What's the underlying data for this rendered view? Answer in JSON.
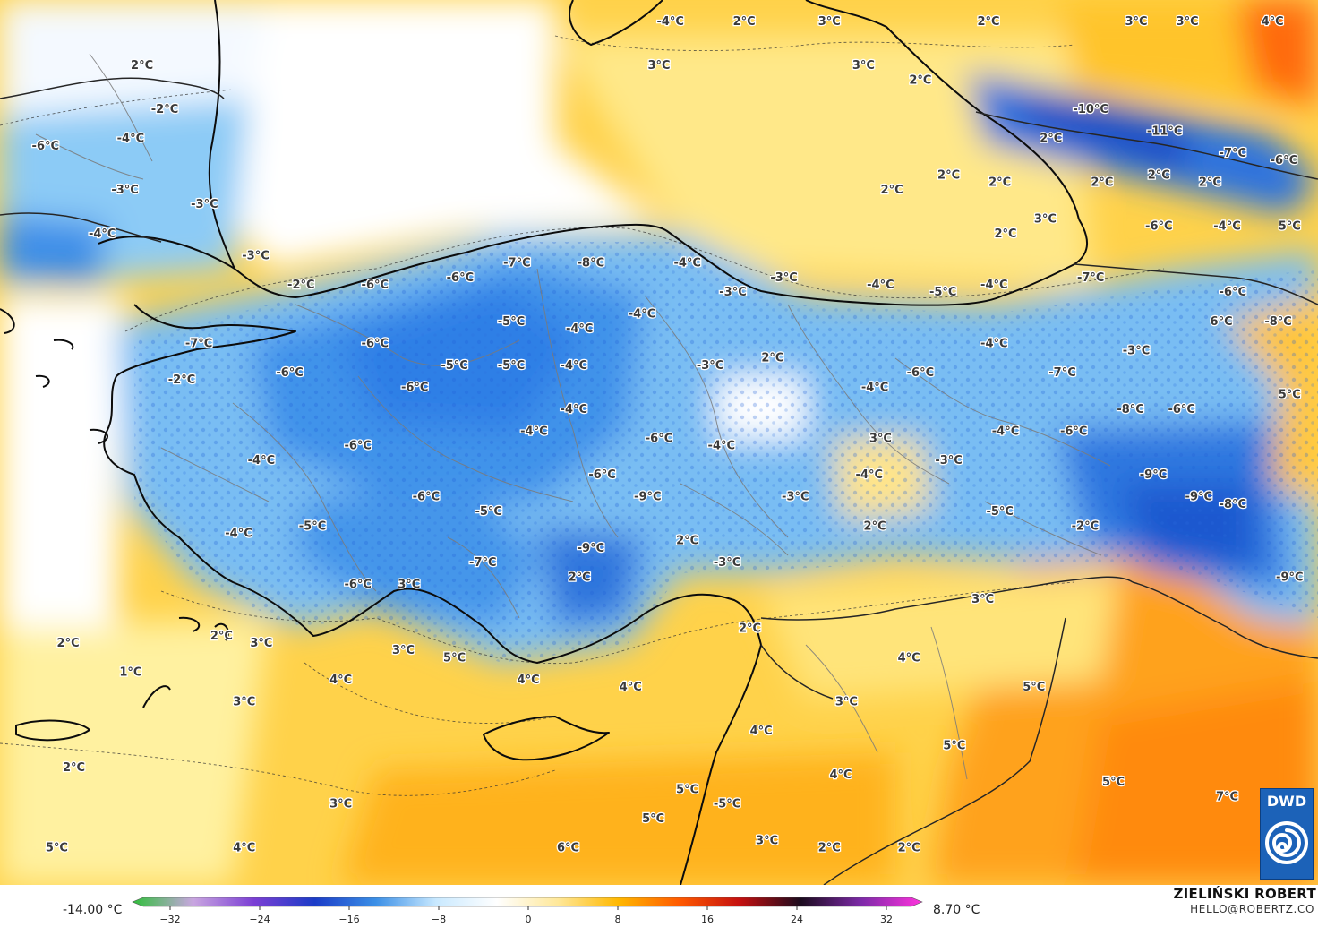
{
  "colorbar": {
    "min_label": "-14.00 °C",
    "max_label": "8.70 °C",
    "ticks": [
      "−32",
      "−24",
      "−16",
      "−8",
      "0",
      "8",
      "16",
      "24",
      "32"
    ],
    "colors": [
      "#2fbf3a",
      "#c9a6e0",
      "#7b3fd4",
      "#1b3cc7",
      "#3b8fe6",
      "#c9e9ff",
      "#ffffff",
      "#ffe89a",
      "#ffb800",
      "#ff5a00",
      "#c41010",
      "#1b0b1e",
      "#7d2aa8",
      "#ff33dd"
    ]
  },
  "credit": {
    "name": "ZIELIŃSKI ROBERT",
    "email": "HELLO@ROBERTZ.CO"
  },
  "logo": {
    "text": "DWD",
    "color": "#1c62b8"
  },
  "temperature_labels": [
    {
      "text": "2°C",
      "lon": 26.1,
      "lat": 43.9
    },
    {
      "text": "-4°C",
      "lon": 35.4,
      "lat": 44.5
    },
    {
      "text": "2°C",
      "lon": 36.7,
      "lat": 44.5
    },
    {
      "text": "3°C",
      "lon": 38.2,
      "lat": 44.5
    },
    {
      "text": "2°C",
      "lon": 41.0,
      "lat": 44.5
    },
    {
      "text": "3°C",
      "lon": 43.6,
      "lat": 44.5
    },
    {
      "text": "3°C",
      "lon": 44.5,
      "lat": 44.5
    },
    {
      "text": "4°C",
      "lon": 46.0,
      "lat": 44.5
    },
    {
      "text": "3°C",
      "lon": 35.2,
      "lat": 43.9
    },
    {
      "text": "3°C",
      "lon": 38.8,
      "lat": 43.9
    },
    {
      "text": "2°C",
      "lon": 39.8,
      "lat": 43.7
    },
    {
      "text": "-2°C",
      "lon": 26.5,
      "lat": 43.3
    },
    {
      "text": "-10°C",
      "lon": 42.8,
      "lat": 43.3
    },
    {
      "text": "-11°C",
      "lon": 44.1,
      "lat": 43.0
    },
    {
      "text": "-6°C",
      "lon": 24.4,
      "lat": 42.8
    },
    {
      "text": "-4°C",
      "lon": 25.9,
      "lat": 42.9
    },
    {
      "text": "2°C",
      "lon": 42.1,
      "lat": 42.9
    },
    {
      "text": "-7°C",
      "lon": 45.3,
      "lat": 42.7
    },
    {
      "text": "-6°C",
      "lon": 46.2,
      "lat": 42.6
    },
    {
      "text": "2°C",
      "lon": 40.3,
      "lat": 42.4
    },
    {
      "text": "2°C",
      "lon": 41.2,
      "lat": 42.3
    },
    {
      "text": "2°C",
      "lon": 43.0,
      "lat": 42.3
    },
    {
      "text": "2°C",
      "lon": 44.0,
      "lat": 42.4
    },
    {
      "text": "2°C",
      "lon": 44.9,
      "lat": 42.3
    },
    {
      "text": "-3°C",
      "lon": 25.8,
      "lat": 42.2
    },
    {
      "text": "-3°C",
      "lon": 27.2,
      "lat": 42.0
    },
    {
      "text": "2°C",
      "lon": 39.3,
      "lat": 42.2
    },
    {
      "text": "3°C",
      "lon": 42.0,
      "lat": 41.8
    },
    {
      "text": "2°C",
      "lon": 41.3,
      "lat": 41.6
    },
    {
      "text": "-6°C",
      "lon": 44.0,
      "lat": 41.7
    },
    {
      "text": "-4°C",
      "lon": 45.2,
      "lat": 41.7
    },
    {
      "text": "5°C",
      "lon": 46.3,
      "lat": 41.7
    },
    {
      "text": "-4°C",
      "lon": 25.4,
      "lat": 41.6
    },
    {
      "text": "-3°C",
      "lon": 28.1,
      "lat": 41.3
    },
    {
      "text": "-7°C",
      "lon": 32.7,
      "lat": 41.2
    },
    {
      "text": "-8°C",
      "lon": 34.0,
      "lat": 41.2
    },
    {
      "text": "-4°C",
      "lon": 35.7,
      "lat": 41.2
    },
    {
      "text": "-7°C",
      "lon": 42.8,
      "lat": 41.0
    },
    {
      "text": "-6°C",
      "lon": 31.7,
      "lat": 41.0
    },
    {
      "text": "-3°C",
      "lon": 37.4,
      "lat": 41.0
    },
    {
      "text": "-6°C",
      "lon": 45.3,
      "lat": 40.8
    },
    {
      "text": "-2°C",
      "lon": 28.9,
      "lat": 40.9
    },
    {
      "text": "-6°C",
      "lon": 30.2,
      "lat": 40.9
    },
    {
      "text": "-3°C",
      "lon": 36.5,
      "lat": 40.8
    },
    {
      "text": "-4°C",
      "lon": 39.1,
      "lat": 40.9
    },
    {
      "text": "-5°C",
      "lon": 40.2,
      "lat": 40.8
    },
    {
      "text": "-4°C",
      "lon": 41.1,
      "lat": 40.9
    },
    {
      "text": "-4°C",
      "lon": 34.9,
      "lat": 40.5
    },
    {
      "text": "-5°C",
      "lon": 32.6,
      "lat": 40.4
    },
    {
      "text": "-4°C",
      "lon": 33.8,
      "lat": 40.3
    },
    {
      "text": "6°C",
      "lon": 45.1,
      "lat": 40.4
    },
    {
      "text": "-8°C",
      "lon": 46.1,
      "lat": 40.4
    },
    {
      "text": "-7°C",
      "lon": 27.1,
      "lat": 40.1
    },
    {
      "text": "-6°C",
      "lon": 30.2,
      "lat": 40.1
    },
    {
      "text": "2°C",
      "lon": 37.2,
      "lat": 39.9
    },
    {
      "text": "-4°C",
      "lon": 41.1,
      "lat": 40.1
    },
    {
      "text": "-3°C",
      "lon": 43.6,
      "lat": 40.0
    },
    {
      "text": "-5°C",
      "lon": 31.6,
      "lat": 39.8
    },
    {
      "text": "-5°C",
      "lon": 32.6,
      "lat": 39.8
    },
    {
      "text": "-4°C",
      "lon": 33.7,
      "lat": 39.8
    },
    {
      "text": "-3°C",
      "lon": 36.1,
      "lat": 39.8
    },
    {
      "text": "-6°C",
      "lon": 39.8,
      "lat": 39.7
    },
    {
      "text": "-7°C",
      "lon": 42.3,
      "lat": 39.7
    },
    {
      "text": "5°C",
      "lon": 46.3,
      "lat": 39.4
    },
    {
      "text": "-2°C",
      "lon": 26.8,
      "lat": 39.6
    },
    {
      "text": "-6°C",
      "lon": 28.7,
      "lat": 39.7
    },
    {
      "text": "-6°C",
      "lon": 30.9,
      "lat": 39.5
    },
    {
      "text": "-4°C",
      "lon": 39.0,
      "lat": 39.5
    },
    {
      "text": "-4°C",
      "lon": 33.7,
      "lat": 39.2
    },
    {
      "text": "-4°C",
      "lon": 33.0,
      "lat": 38.9
    },
    {
      "text": "-8°C",
      "lon": 43.5,
      "lat": 39.2
    },
    {
      "text": "-6°C",
      "lon": 44.4,
      "lat": 39.2
    },
    {
      "text": "3°C",
      "lon": 39.1,
      "lat": 38.8
    },
    {
      "text": "-4°C",
      "lon": 41.3,
      "lat": 38.9
    },
    {
      "text": "-6°C",
      "lon": 42.5,
      "lat": 38.9
    },
    {
      "text": "-6°C",
      "lon": 35.2,
      "lat": 38.8
    },
    {
      "text": "-4°C",
      "lon": 36.3,
      "lat": 38.7
    },
    {
      "text": "-6°C",
      "lon": 29.9,
      "lat": 38.7
    },
    {
      "text": "-4°C",
      "lon": 28.2,
      "lat": 38.5
    },
    {
      "text": "-3°C",
      "lon": 40.3,
      "lat": 38.5
    },
    {
      "text": "-6°C",
      "lon": 34.2,
      "lat": 38.3
    },
    {
      "text": "-4°C",
      "lon": 38.9,
      "lat": 38.3
    },
    {
      "text": "-9°C",
      "lon": 43.9,
      "lat": 38.3
    },
    {
      "text": "-6°C",
      "lon": 31.1,
      "lat": 38.0
    },
    {
      "text": "-9°C",
      "lon": 35.0,
      "lat": 38.0
    },
    {
      "text": "-3°C",
      "lon": 37.6,
      "lat": 38.0
    },
    {
      "text": "-5°C",
      "lon": 32.2,
      "lat": 37.8
    },
    {
      "text": "-5°C",
      "lon": 41.2,
      "lat": 37.8
    },
    {
      "text": "-9°C",
      "lon": 44.7,
      "lat": 38.0
    },
    {
      "text": "-8°C",
      "lon": 45.3,
      "lat": 37.9
    },
    {
      "text": "-5°C",
      "lon": 29.1,
      "lat": 37.6
    },
    {
      "text": "2°C",
      "lon": 39.0,
      "lat": 37.6
    },
    {
      "text": "-2°C",
      "lon": 42.7,
      "lat": 37.6
    },
    {
      "text": "-4°C",
      "lon": 27.8,
      "lat": 37.5
    },
    {
      "text": "-9°C",
      "lon": 34.0,
      "lat": 37.3
    },
    {
      "text": "2°C",
      "lon": 35.7,
      "lat": 37.4
    },
    {
      "text": "-7°C",
      "lon": 32.1,
      "lat": 37.1
    },
    {
      "text": "-3°C",
      "lon": 36.4,
      "lat": 37.1
    },
    {
      "text": "2°C",
      "lon": 33.8,
      "lat": 36.9
    },
    {
      "text": "-6°C",
      "lon": 29.9,
      "lat": 36.8
    },
    {
      "text": "3°C",
      "lon": 30.8,
      "lat": 36.8
    },
    {
      "text": "-9°C",
      "lon": 46.3,
      "lat": 36.9
    },
    {
      "text": "3°C",
      "lon": 40.9,
      "lat": 36.6
    },
    {
      "text": "2°C",
      "lon": 36.8,
      "lat": 36.2
    },
    {
      "text": "2°C",
      "lon": 24.8,
      "lat": 36.0
    },
    {
      "text": "2°C",
      "lon": 27.5,
      "lat": 36.1
    },
    {
      "text": "3°C",
      "lon": 28.2,
      "lat": 36.0
    },
    {
      "text": "3°C",
      "lon": 30.7,
      "lat": 35.9
    },
    {
      "text": "5°C",
      "lon": 31.6,
      "lat": 35.8
    },
    {
      "text": "1°C",
      "lon": 25.9,
      "lat": 35.6
    },
    {
      "text": "4°C",
      "lon": 39.6,
      "lat": 35.8
    },
    {
      "text": "4°C",
      "lon": 29.6,
      "lat": 35.5
    },
    {
      "text": "4°C",
      "lon": 32.9,
      "lat": 35.5
    },
    {
      "text": "4°C",
      "lon": 34.7,
      "lat": 35.4
    },
    {
      "text": "5°C",
      "lon": 41.8,
      "lat": 35.4
    },
    {
      "text": "3°C",
      "lon": 27.9,
      "lat": 35.2
    },
    {
      "text": "3°C",
      "lon": 38.5,
      "lat": 35.2
    },
    {
      "text": "4°C",
      "lon": 37.0,
      "lat": 34.8
    },
    {
      "text": "5°C",
      "lon": 40.4,
      "lat": 34.6
    },
    {
      "text": "2°C",
      "lon": 24.9,
      "lat": 34.3
    },
    {
      "text": "4°C",
      "lon": 38.4,
      "lat": 34.2
    },
    {
      "text": "5°C",
      "lon": 43.2,
      "lat": 34.1
    },
    {
      "text": "5°C",
      "lon": 35.7,
      "lat": 34.0
    },
    {
      "text": "7°C",
      "lon": 45.2,
      "lat": 33.9
    },
    {
      "text": "3°C",
      "lon": 29.6,
      "lat": 33.8
    },
    {
      "text": "-5°C",
      "lon": 36.4,
      "lat": 33.8
    },
    {
      "text": "5°C",
      "lon": 35.1,
      "lat": 33.6
    },
    {
      "text": "5°C",
      "lon": 24.6,
      "lat": 33.2
    },
    {
      "text": "4°C",
      "lon": 27.9,
      "lat": 33.2
    },
    {
      "text": "6°C",
      "lon": 33.6,
      "lat": 33.2
    },
    {
      "text": "3°C",
      "lon": 37.1,
      "lat": 33.3
    },
    {
      "text": "2°C",
      "lon": 38.2,
      "lat": 33.2
    },
    {
      "text": "2°C",
      "lon": 39.6,
      "lat": 33.2
    }
  ]
}
